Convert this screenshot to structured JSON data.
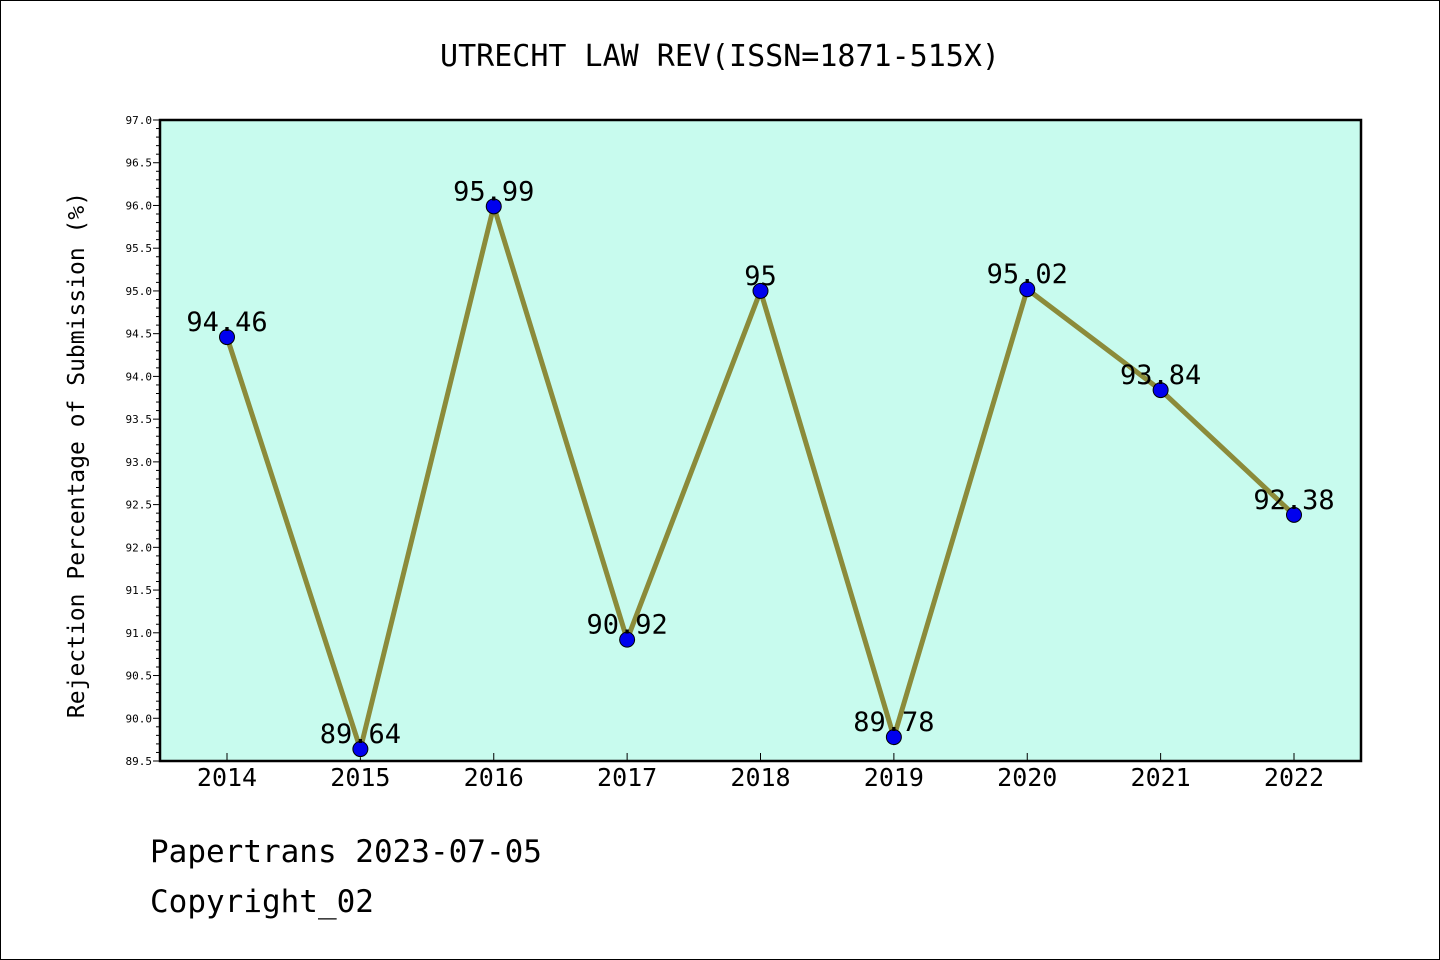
{
  "chart_data": {
    "type": "line",
    "title": "UTRECHT LAW REV(ISSN=1871-515X)",
    "ylabel": "Rejection Percentage of Submission (%)",
    "xlabel": "",
    "categories": [
      "2014",
      "2015",
      "2016",
      "2017",
      "2018",
      "2019",
      "2020",
      "2021",
      "2022"
    ],
    "series": [
      {
        "values": [
          94.46,
          89.64,
          95.99,
          90.92,
          95,
          89.78,
          95.02,
          93.84,
          92.38
        ],
        "labels": [
          "94.46",
          "89.64",
          "95.99",
          "90.92",
          "95",
          "89.78",
          "95.02",
          "93.84",
          "92.38"
        ]
      }
    ],
    "ylim": [
      89.5,
      97.0
    ],
    "yticks": [
      "89.5",
      "90.0",
      "90.5",
      "91.0",
      "91.5",
      "92.0",
      "92.5",
      "93.0",
      "93.5",
      "94.0",
      "94.5",
      "95.0",
      "95.5",
      "96.0",
      "96.5",
      "97.0"
    ],
    "grid": false,
    "colors": {
      "plot_background": "#c8fbee",
      "line": "#8b8b3a",
      "marker": "#0000ee"
    }
  },
  "footer": {
    "line1": "Papertrans 2023-07-05",
    "line2": "Copyright_02"
  }
}
